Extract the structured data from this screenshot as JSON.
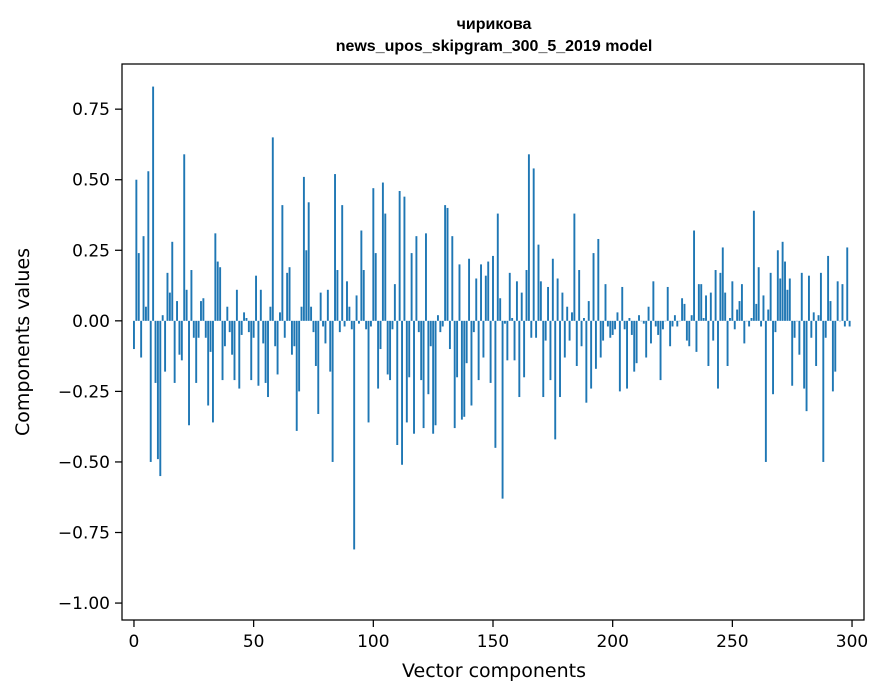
{
  "chart_data": {
    "type": "bar",
    "title": "чирикова",
    "subtitle": "news_upos_skipgram_300_5_2019 model",
    "xlabel": "Vector components",
    "ylabel": "Components values",
    "xlim": [
      -5,
      305
    ],
    "ylim": [
      -1.06,
      0.91
    ],
    "xticks": [
      0,
      50,
      100,
      150,
      200,
      250,
      300
    ],
    "xtick_labels": [
      "0",
      "50",
      "100",
      "150",
      "200",
      "250",
      "300"
    ],
    "yticks": [
      0.75,
      0.5,
      0.25,
      0.0,
      -0.25,
      -0.5,
      -0.75,
      -1.0
    ],
    "ytick_labels": [
      "0.75",
      "0.50",
      "0.25",
      "0.00",
      "−0.25",
      "−0.50",
      "−0.75",
      "−1.00"
    ],
    "grid": false,
    "legend": false,
    "bar_color": "#1f77b4",
    "x": [
      0,
      1,
      2,
      3,
      4,
      5,
      6,
      7,
      8,
      9,
      10,
      11,
      12,
      13,
      14,
      15,
      16,
      17,
      18,
      19,
      20,
      21,
      22,
      23,
      24,
      25,
      26,
      27,
      28,
      29,
      30,
      31,
      32,
      33,
      34,
      35,
      36,
      37,
      38,
      39,
      40,
      41,
      42,
      43,
      44,
      45,
      46,
      47,
      48,
      49,
      50,
      51,
      52,
      53,
      54,
      55,
      56,
      57,
      58,
      59,
      60,
      61,
      62,
      63,
      64,
      65,
      66,
      67,
      68,
      69,
      70,
      71,
      72,
      73,
      74,
      75,
      76,
      77,
      78,
      79,
      80,
      81,
      82,
      83,
      84,
      85,
      86,
      87,
      88,
      89,
      90,
      91,
      92,
      93,
      94,
      95,
      96,
      97,
      98,
      99,
      100,
      101,
      102,
      103,
      104,
      105,
      106,
      107,
      108,
      109,
      110,
      111,
      112,
      113,
      114,
      115,
      116,
      117,
      118,
      119,
      120,
      121,
      122,
      123,
      124,
      125,
      126,
      127,
      128,
      129,
      130,
      131,
      132,
      133,
      134,
      135,
      136,
      137,
      138,
      139,
      140,
      141,
      142,
      143,
      144,
      145,
      146,
      147,
      148,
      149,
      150,
      151,
      152,
      153,
      154,
      155,
      156,
      157,
      158,
      159,
      160,
      161,
      162,
      163,
      164,
      165,
      166,
      167,
      168,
      169,
      170,
      171,
      172,
      173,
      174,
      175,
      176,
      177,
      178,
      179,
      180,
      181,
      182,
      183,
      184,
      185,
      186,
      187,
      188,
      189,
      190,
      191,
      192,
      193,
      194,
      195,
      196,
      197,
      198,
      199,
      200,
      201,
      202,
      203,
      204,
      205,
      206,
      207,
      208,
      209,
      210,
      211,
      212,
      213,
      214,
      215,
      216,
      217,
      218,
      219,
      220,
      221,
      222,
      223,
      224,
      225,
      226,
      227,
      228,
      229,
      230,
      231,
      232,
      233,
      234,
      235,
      236,
      237,
      238,
      239,
      240,
      241,
      242,
      243,
      244,
      245,
      246,
      247,
      248,
      249,
      250,
      251,
      252,
      253,
      254,
      255,
      256,
      257,
      258,
      259,
      260,
      261,
      262,
      263,
      264,
      265,
      266,
      267,
      268,
      269,
      270,
      271,
      272,
      273,
      274,
      275,
      276,
      277,
      278,
      279,
      280,
      281,
      282,
      283,
      284,
      285,
      286,
      287,
      288,
      289,
      290,
      291,
      292,
      293,
      294,
      295,
      296,
      297,
      298,
      299
    ],
    "values": [
      -0.1,
      0.5,
      0.24,
      -0.13,
      0.3,
      0.05,
      0.53,
      -0.5,
      0.83,
      -0.22,
      -0.49,
      -0.55,
      0.02,
      -0.18,
      0.17,
      0.1,
      0.28,
      -0.22,
      0.07,
      -0.12,
      -0.14,
      0.59,
      0.11,
      -0.37,
      0.18,
      -0.06,
      -0.22,
      -0.06,
      0.07,
      0.08,
      -0.06,
      -0.3,
      -0.11,
      -0.36,
      0.31,
      0.21,
      0.19,
      -0.21,
      -0.09,
      0.05,
      -0.04,
      -0.12,
      -0.21,
      0.11,
      -0.24,
      -0.05,
      0.03,
      0.01,
      -0.04,
      -0.21,
      -0.06,
      0.16,
      -0.23,
      0.11,
      -0.08,
      -0.22,
      -0.27,
      0.05,
      0.65,
      -0.09,
      -0.19,
      0.03,
      0.41,
      -0.06,
      0.17,
      0.19,
      -0.12,
      -0.09,
      -0.39,
      -0.25,
      0.05,
      0.51,
      0.25,
      0.42,
      0.05,
      -0.04,
      -0.16,
      -0.33,
      0.1,
      -0.02,
      -0.08,
      0.11,
      -0.18,
      -0.5,
      0.52,
      0.18,
      -0.04,
      0.41,
      -0.02,
      0.14,
      0.05,
      -0.03,
      -0.81,
      0.09,
      -0.01,
      0.32,
      0.18,
      -0.03,
      -0.36,
      -0.02,
      0.47,
      0.24,
      -0.24,
      -0.1,
      0.49,
      0.38,
      -0.19,
      -0.21,
      -0.03,
      0.13,
      -0.44,
      0.46,
      -0.51,
      0.44,
      -0.36,
      -0.2,
      0.24,
      -0.4,
      0.3,
      -0.04,
      -0.21,
      -0.38,
      0.31,
      -0.26,
      -0.09,
      -0.4,
      -0.37,
      0.02,
      -0.04,
      -0.02,
      0.41,
      0.4,
      -0.1,
      0.3,
      -0.38,
      -0.2,
      0.2,
      -0.35,
      -0.34,
      -0.15,
      0.22,
      -0.3,
      -0.04,
      0.15,
      -0.21,
      0.2,
      -0.13,
      0.16,
      0.21,
      -0.22,
      0.23,
      -0.45,
      0.38,
      0.08,
      -0.63,
      -0.01,
      -0.14,
      0.17,
      0.01,
      -0.14,
      0.14,
      -0.27,
      0.1,
      -0.2,
      0.18,
      0.59,
      -0.06,
      0.54,
      -0.06,
      0.27,
      0.14,
      -0.27,
      -0.07,
      0.12,
      -0.21,
      0.22,
      -0.42,
      0.15,
      -0.27,
      0.1,
      -0.13,
      0.05,
      -0.07,
      0.03,
      0.38,
      -0.16,
      0.18,
      -0.09,
      0.01,
      -0.29,
      0.07,
      -0.24,
      0.24,
      -0.17,
      0.29,
      -0.13,
      -0.07,
      0.13,
      -0.02,
      -0.06,
      -0.05,
      -0.03,
      0.03,
      -0.25,
      0.12,
      -0.03,
      -0.24,
      0.01,
      -0.05,
      -0.18,
      -0.15,
      0.02,
      0.0,
      -0.01,
      -0.13,
      0.05,
      -0.08,
      0.14,
      -0.02,
      -0.05,
      -0.21,
      -0.03,
      0.0,
      0.12,
      -0.09,
      -0.02,
      0.02,
      -0.02,
      0.0,
      0.08,
      0.06,
      -0.07,
      -0.09,
      0.02,
      0.32,
      -0.11,
      0.13,
      0.13,
      0.01,
      0.09,
      -0.16,
      0.1,
      -0.07,
      0.18,
      -0.24,
      0.17,
      0.26,
      0.1,
      -0.16,
      0.01,
      0.14,
      -0.03,
      0.04,
      0.07,
      0.13,
      -0.08,
      0.0,
      -0.02,
      0.01,
      0.39,
      0.06,
      0.19,
      -0.02,
      0.09,
      -0.5,
      0.04,
      0.17,
      -0.26,
      -0.04,
      0.25,
      0.15,
      0.28,
      0.21,
      0.11,
      0.15,
      -0.23,
      -0.06,
      0.0,
      -0.12,
      0.17,
      -0.24,
      -0.32,
      0.16,
      -0.06,
      0.03,
      -0.16,
      0.02,
      0.17,
      -0.5,
      -0.06,
      0.23,
      0.07,
      -0.25,
      -0.18,
      0.14,
      0.0,
      0.13,
      -0.02,
      0.26,
      -0.02
    ]
  }
}
